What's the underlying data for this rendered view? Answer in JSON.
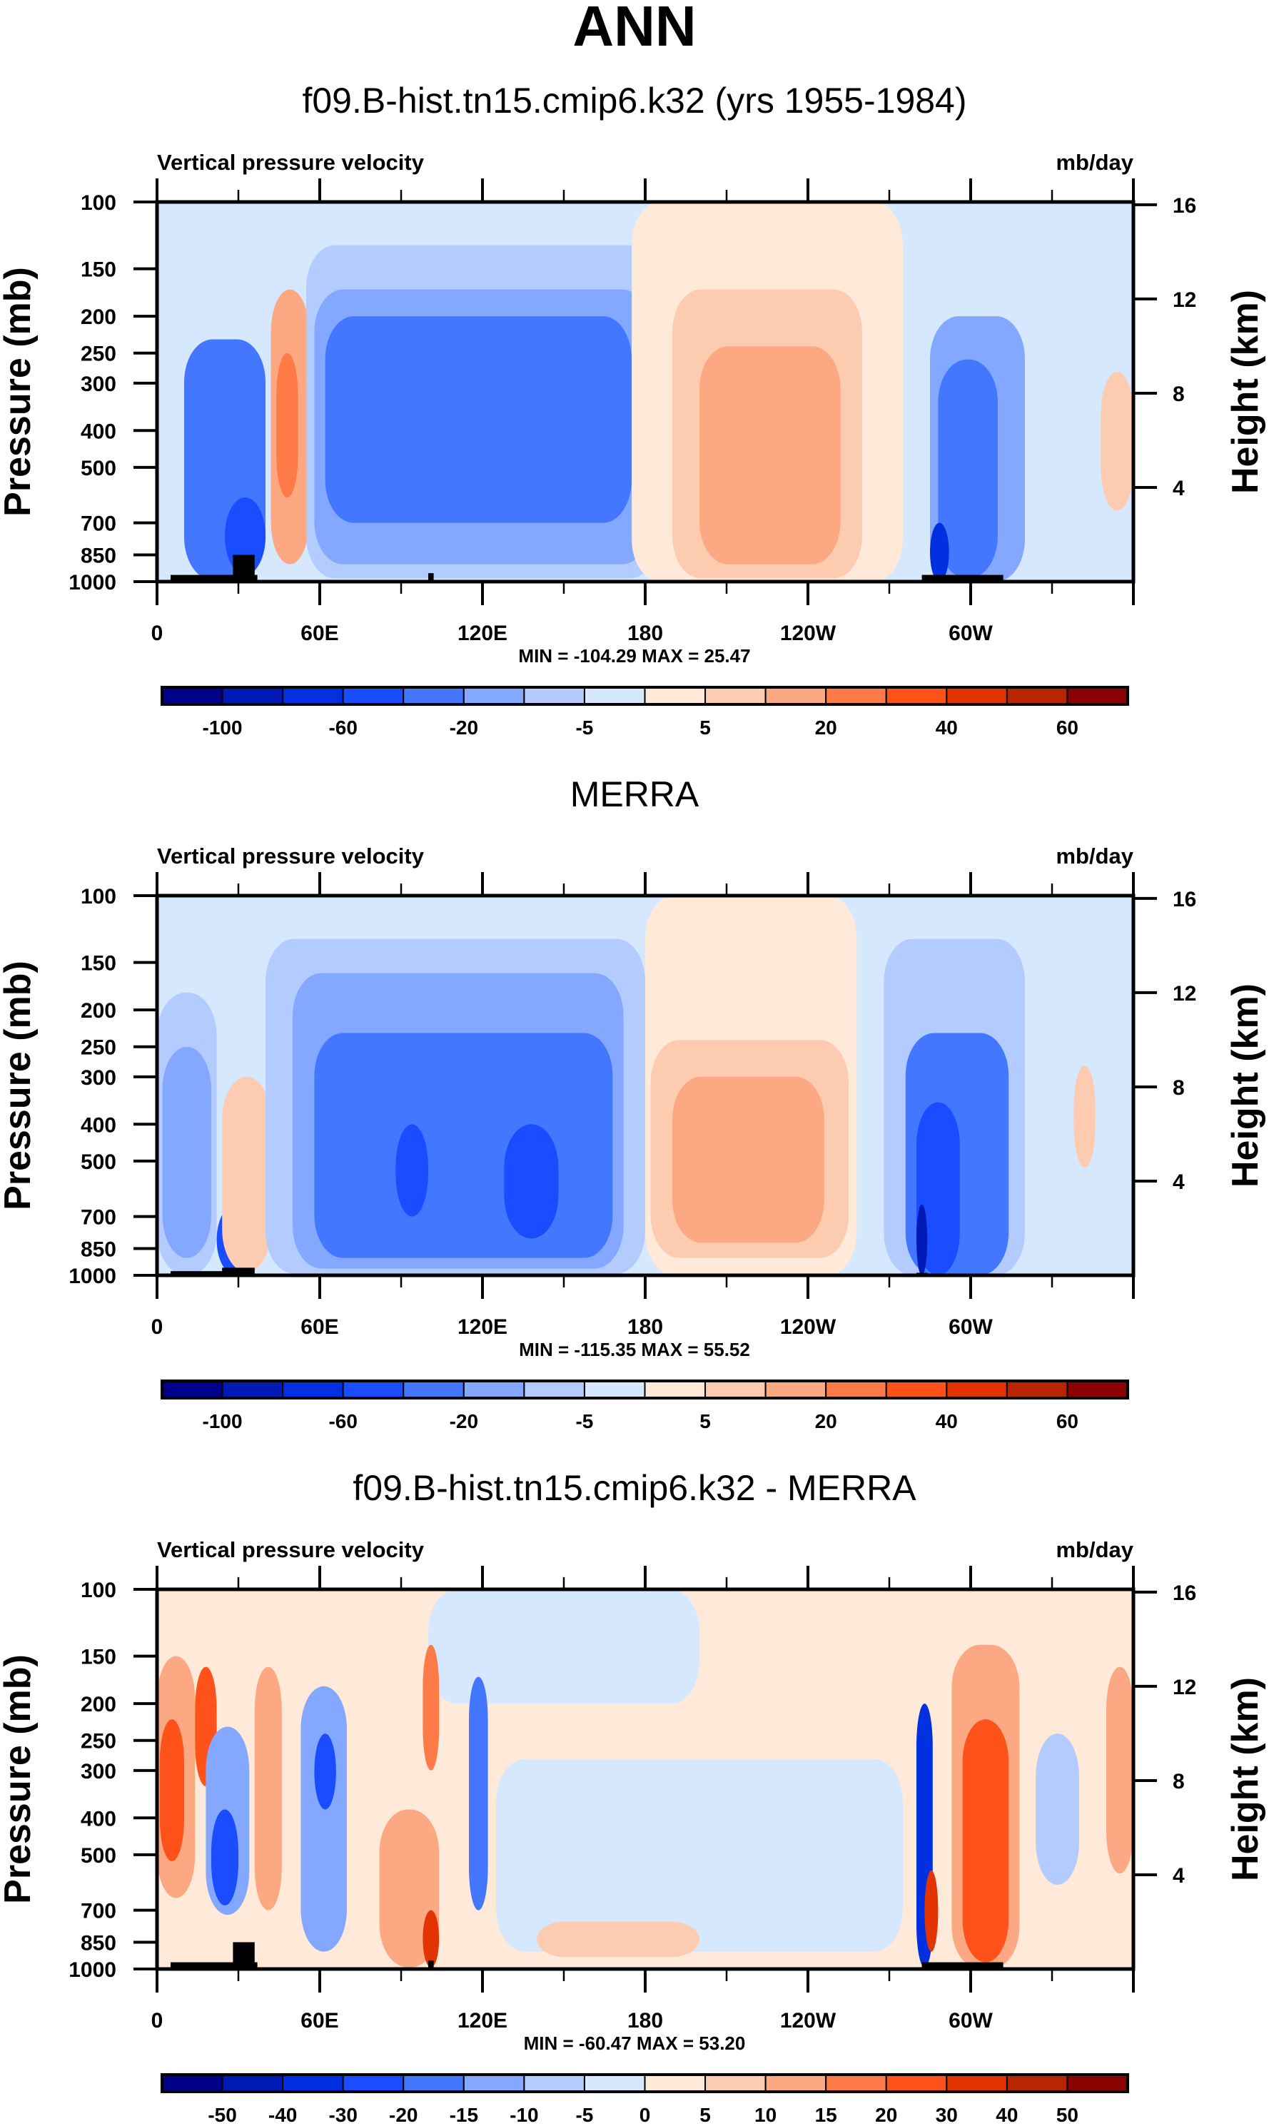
{
  "figure": {
    "title": "ANN"
  },
  "chart_data": [
    {
      "type": "heatmap",
      "subtype": "filled-contour",
      "title": "f09.B-hist.tn15.cmip6.k32 (yrs 1955-1984)",
      "left_string": "Vertical pressure velocity",
      "right_string": "mb/day",
      "xlabel": "",
      "ylabel": "Pressure (mb)",
      "ylabel_right": "Height (km)",
      "xlim": [
        0,
        360
      ],
      "ylim": [
        1000,
        100
      ],
      "y_scale": "log",
      "x_ticks": [
        {
          "value": 0,
          "label": "0"
        },
        {
          "value": 60,
          "label": "60E"
        },
        {
          "value": 120,
          "label": "120E"
        },
        {
          "value": 180,
          "label": "180"
        },
        {
          "value": 240,
          "label": "120W"
        },
        {
          "value": 300,
          "label": "60W"
        }
      ],
      "x_minor_ticks": [
        30,
        90,
        150,
        210,
        270,
        330
      ],
      "y_ticks": [
        100,
        150,
        200,
        250,
        300,
        400,
        500,
        700,
        850,
        1000
      ],
      "y_right_ticks": [
        16,
        12,
        8,
        4
      ],
      "stats": "MIN = -104.29  MAX =  25.47",
      "colorbar": {
        "levels": [
          -100,
          -80,
          -60,
          -40,
          -20,
          -10,
          -5,
          0,
          5,
          10,
          20,
          30,
          40,
          50,
          60
        ],
        "labels": [
          "-100",
          "",
          "-60",
          "",
          "-20",
          "",
          "-5",
          "",
          "5",
          "",
          "20",
          "",
          "40",
          "",
          "60"
        ]
      },
      "features": [
        {
          "name": "bg-weak-ascent",
          "lon": [
            0,
            360
          ],
          "p": [
            100,
            1000
          ],
          "level": 7
        },
        {
          "name": "africa-ascent",
          "lon": [
            10,
            40
          ],
          "p": [
            230,
            990
          ],
          "level": 4
        },
        {
          "name": "africa-strong",
          "lon": [
            25,
            40
          ],
          "p": [
            600,
            960
          ],
          "level": 3
        },
        {
          "name": "east-africa-descent",
          "lon": [
            42,
            56
          ],
          "p": [
            170,
            900
          ],
          "level": 10
        },
        {
          "name": "east-africa-descent-core",
          "lon": [
            44,
            52
          ],
          "p": [
            250,
            600
          ],
          "level": 11
        },
        {
          "name": "warm-pool-ascent-outer",
          "lon": [
            55,
            185
          ],
          "p": [
            130,
            980
          ],
          "level": 6
        },
        {
          "name": "warm-pool-ascent",
          "lon": [
            58,
            182
          ],
          "p": [
            170,
            900
          ],
          "level": 5
        },
        {
          "name": "warm-pool-ascent-core",
          "lon": [
            62,
            175
          ],
          "p": [
            200,
            700
          ],
          "level": 4
        },
        {
          "name": "east-pacific-descent-outer",
          "lon": [
            175,
            275
          ],
          "p": [
            100,
            1000
          ],
          "level": 8
        },
        {
          "name": "east-pacific-descent",
          "lon": [
            190,
            260
          ],
          "p": [
            170,
            980
          ],
          "level": 9
        },
        {
          "name": "east-pacific-descent-core",
          "lon": [
            200,
            252
          ],
          "p": [
            240,
            900
          ],
          "level": 10
        },
        {
          "name": "amazon-ascent",
          "lon": [
            285,
            320
          ],
          "p": [
            200,
            1000
          ],
          "level": 5
        },
        {
          "name": "amazon-ascent-core",
          "lon": [
            288,
            310
          ],
          "p": [
            260,
            980
          ],
          "level": 4
        },
        {
          "name": "andes-strong",
          "lon": [
            285,
            292
          ],
          "p": [
            700,
            1000
          ],
          "level": 2
        },
        {
          "name": "atlantic-descent",
          "lon": [
            348,
            360
          ],
          "p": [
            280,
            650
          ],
          "level": 9
        }
      ],
      "topography": [
        {
          "lon": [
            5,
            37
          ],
          "p_top": 960
        },
        {
          "lon": [
            28,
            36
          ],
          "p_top": 850
        },
        {
          "lon": [
            100,
            102
          ],
          "p_top": 950
        },
        {
          "lon": [
            282,
            312
          ],
          "p_top": 960
        }
      ]
    },
    {
      "type": "heatmap",
      "subtype": "filled-contour",
      "title": "MERRA",
      "left_string": "Vertical pressure velocity",
      "right_string": "mb/day",
      "xlabel": "",
      "ylabel": "Pressure (mb)",
      "ylabel_right": "Height (km)",
      "xlim": [
        0,
        360
      ],
      "ylim": [
        1000,
        100
      ],
      "y_scale": "log",
      "x_ticks": [
        {
          "value": 0,
          "label": "0"
        },
        {
          "value": 60,
          "label": "60E"
        },
        {
          "value": 120,
          "label": "120E"
        },
        {
          "value": 180,
          "label": "180"
        },
        {
          "value": 240,
          "label": "120W"
        },
        {
          "value": 300,
          "label": "60W"
        }
      ],
      "x_minor_ticks": [
        30,
        90,
        150,
        210,
        270,
        330
      ],
      "y_ticks": [
        100,
        150,
        200,
        250,
        300,
        400,
        500,
        700,
        850,
        1000
      ],
      "y_right_ticks": [
        16,
        12,
        8,
        4
      ],
      "stats": "MIN = -115.35  MAX =  55.52",
      "colorbar": {
        "levels": [
          -100,
          -80,
          -60,
          -40,
          -20,
          -10,
          -5,
          0,
          5,
          10,
          20,
          30,
          40,
          50,
          60
        ],
        "labels": [
          "-100",
          "",
          "-60",
          "",
          "-20",
          "",
          "-5",
          "",
          "5",
          "",
          "20",
          "",
          "40",
          "",
          "60"
        ]
      },
      "features": [
        {
          "name": "bg-weak-ascent",
          "lon": [
            0,
            360
          ],
          "p": [
            100,
            1000
          ],
          "level": 7
        },
        {
          "name": "africa-ascent-outer",
          "lon": [
            0,
            22
          ],
          "p": [
            180,
            1000
          ],
          "level": 6
        },
        {
          "name": "africa-ascent",
          "lon": [
            2,
            20
          ],
          "p": [
            250,
            900
          ],
          "level": 5
        },
        {
          "name": "africa-strong",
          "lon": [
            22,
            36
          ],
          "p": [
            650,
            1000
          ],
          "level": 3
        },
        {
          "name": "africa-descent",
          "lon": [
            24,
            42
          ],
          "p": [
            300,
            980
          ],
          "level": 9
        },
        {
          "name": "warm-pool-ascent-outer",
          "lon": [
            40,
            180
          ],
          "p": [
            130,
            990
          ],
          "level": 6
        },
        {
          "name": "warm-pool-ascent",
          "lon": [
            50,
            172
          ],
          "p": [
            160,
            960
          ],
          "level": 5
        },
        {
          "name": "warm-pool-ascent-core",
          "lon": [
            58,
            168
          ],
          "p": [
            230,
            900
          ],
          "level": 4
        },
        {
          "name": "indian-core",
          "lon": [
            88,
            100
          ],
          "p": [
            400,
            700
          ],
          "level": 3
        },
        {
          "name": "pacific-core",
          "lon": [
            128,
            148
          ],
          "p": [
            400,
            800
          ],
          "level": 3
        },
        {
          "name": "east-pacific-descent-outer",
          "lon": [
            180,
            258
          ],
          "p": [
            100,
            1000
          ],
          "level": 8
        },
        {
          "name": "east-pacific-descent",
          "lon": [
            182,
            255
          ],
          "p": [
            240,
            900
          ],
          "level": 9
        },
        {
          "name": "east-pacific-descent-core",
          "lon": [
            190,
            246
          ],
          "p": [
            300,
            820
          ],
          "level": 10
        },
        {
          "name": "amazon-ascent-outer",
          "lon": [
            268,
            320
          ],
          "p": [
            130,
            1000
          ],
          "level": 6
        },
        {
          "name": "amazon-ascent",
          "lon": [
            276,
            314
          ],
          "p": [
            230,
            1000
          ],
          "level": 4
        },
        {
          "name": "amazon-core",
          "lon": [
            280,
            296
          ],
          "p": [
            350,
            1000
          ],
          "level": 3
        },
        {
          "name": "andes-strong",
          "lon": [
            280,
            284
          ],
          "p": [
            650,
            1000
          ],
          "level": 1
        },
        {
          "name": "atlantic-descent",
          "lon": [
            338,
            346
          ],
          "p": [
            280,
            520
          ],
          "level": 9
        }
      ],
      "topography": [
        {
          "lon": [
            5,
            28
          ],
          "p_top": 975
        },
        {
          "lon": [
            24,
            36
          ],
          "p_top": 955
        },
        {
          "lon": [
            280,
            284
          ],
          "p_top": 985
        }
      ]
    },
    {
      "type": "heatmap",
      "subtype": "filled-contour",
      "title": "f09.B-hist.tn15.cmip6.k32 - MERRA",
      "left_string": "Vertical pressure velocity",
      "right_string": "mb/day",
      "xlabel": "",
      "ylabel": "Pressure (mb)",
      "ylabel_right": "Height (km)",
      "xlim": [
        0,
        360
      ],
      "ylim": [
        1000,
        100
      ],
      "y_scale": "log",
      "x_ticks": [
        {
          "value": 0,
          "label": "0"
        },
        {
          "value": 60,
          "label": "60E"
        },
        {
          "value": 120,
          "label": "120E"
        },
        {
          "value": 180,
          "label": "180"
        },
        {
          "value": 240,
          "label": "120W"
        },
        {
          "value": 300,
          "label": "60W"
        }
      ],
      "x_minor_ticks": [
        30,
        90,
        150,
        210,
        270,
        330
      ],
      "y_ticks": [
        100,
        150,
        200,
        250,
        300,
        400,
        500,
        700,
        850,
        1000
      ],
      "y_right_ticks": [
        16,
        12,
        8,
        4
      ],
      "stats": "MIN = -60.47  MAX =  53.20",
      "colorbar": {
        "levels": [
          -50,
          -40,
          -30,
          -20,
          -15,
          -10,
          -5,
          0,
          5,
          10,
          15,
          20,
          30,
          40,
          50
        ],
        "labels": [
          "-50",
          "-40",
          "-30",
          "-20",
          "-15",
          "-10",
          "-5",
          "0",
          "5",
          "10",
          "15",
          "20",
          "30",
          "40",
          "50"
        ]
      },
      "features": [
        {
          "name": "bg-weak-positive",
          "lon": [
            0,
            360
          ],
          "p": [
            100,
            1000
          ],
          "level": 8
        },
        {
          "name": "pacific-weak-negative",
          "lon": [
            125,
            275
          ],
          "p": [
            280,
            900
          ],
          "level": 7
        },
        {
          "name": "top-weak-negative",
          "lon": [
            100,
            200
          ],
          "p": [
            100,
            200
          ],
          "level": 7
        },
        {
          "name": "west-africa-positive",
          "lon": [
            0,
            14
          ],
          "p": [
            150,
            650
          ],
          "level": 10
        },
        {
          "name": "west-africa-positive-core",
          "lon": [
            1,
            10
          ],
          "p": [
            220,
            520
          ],
          "level": 12
        },
        {
          "name": "africa-positive-2",
          "lon": [
            14,
            22
          ],
          "p": [
            160,
            330
          ],
          "level": 12
        },
        {
          "name": "africa-negative",
          "lon": [
            18,
            34
          ],
          "p": [
            230,
            720
          ],
          "level": 5
        },
        {
          "name": "africa-negative-core",
          "lon": [
            20,
            30
          ],
          "p": [
            380,
            680
          ],
          "level": 3
        },
        {
          "name": "africa-positive-3",
          "lon": [
            36,
            46
          ],
          "p": [
            160,
            700
          ],
          "level": 10
        },
        {
          "name": "arabian-negative",
          "lon": [
            53,
            70
          ],
          "p": [
            180,
            900
          ],
          "level": 5
        },
        {
          "name": "arabian-negative-core",
          "lon": [
            58,
            66
          ],
          "p": [
            240,
            380
          ],
          "level": 3
        },
        {
          "name": "bay-positive",
          "lon": [
            82,
            104
          ],
          "p": [
            380,
            990
          ],
          "level": 10
        },
        {
          "name": "bay-positive-core",
          "lon": [
            98,
            104
          ],
          "p": [
            700,
            990
          ],
          "level": 13
        },
        {
          "name": "himalaya-positive",
          "lon": [
            98,
            104
          ],
          "p": [
            140,
            300
          ],
          "level": 11
        },
        {
          "name": "maritime-negative",
          "lon": [
            115,
            122
          ],
          "p": [
            170,
            700
          ],
          "level": 4
        },
        {
          "name": "pacific-positive-low",
          "lon": [
            140,
            200
          ],
          "p": [
            750,
            930
          ],
          "level": 9
        },
        {
          "name": "andes-negative",
          "lon": [
            280,
            286
          ],
          "p": [
            200,
            990
          ],
          "level": 2
        },
        {
          "name": "andes-positive-low",
          "lon": [
            283,
            288
          ],
          "p": [
            550,
            900
          ],
          "level": 13
        },
        {
          "name": "amazon-positive",
          "lon": [
            293,
            318
          ],
          "p": [
            140,
            1000
          ],
          "level": 10
        },
        {
          "name": "amazon-positive-core",
          "lon": [
            297,
            314
          ],
          "p": [
            220,
            960
          ],
          "level": 12
        },
        {
          "name": "atlantic-negative",
          "lon": [
            324,
            340
          ],
          "p": [
            240,
            600
          ],
          "level": 6
        },
        {
          "name": "atlantic-positive",
          "lon": [
            350,
            360
          ],
          "p": [
            160,
            560
          ],
          "level": 10
        }
      ],
      "topography": [
        {
          "lon": [
            5,
            37
          ],
          "p_top": 960
        },
        {
          "lon": [
            28,
            36
          ],
          "p_top": 850
        },
        {
          "lon": [
            100,
            102
          ],
          "p_top": 950
        },
        {
          "lon": [
            282,
            312
          ],
          "p_top": 960
        }
      ]
    }
  ],
  "colormap": [
    "#00008b",
    "#001bb5",
    "#0030e0",
    "#1a4dff",
    "#4477ff",
    "#84a8ff",
    "#b3cbff",
    "#d6e8fd",
    "#ffe9d8",
    "#fdcbb0",
    "#fca883",
    "#fe7a46",
    "#fe521a",
    "#e33300",
    "#b82500",
    "#8b0000"
  ],
  "frame_color": "#000000",
  "topography_color": "#000000"
}
